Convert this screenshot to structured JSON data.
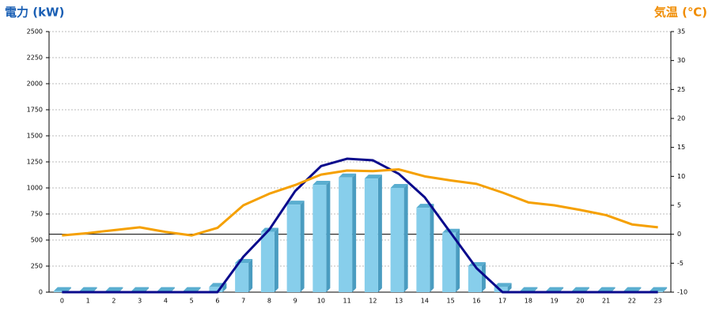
{
  "chart_data": {
    "type": "bar-line",
    "y_label": "電力 (kW)",
    "y2_label": "気温 (℃)",
    "categories": [
      "0",
      "1",
      "2",
      "3",
      "4",
      "5",
      "6",
      "7",
      "8",
      "9",
      "10",
      "11",
      "12",
      "13",
      "14",
      "15",
      "16",
      "17",
      "18",
      "19",
      "20",
      "21",
      "22",
      "23"
    ],
    "series": [
      {
        "type": "bar",
        "color": "#87ceeb",
        "values": [
          10,
          10,
          10,
          10,
          10,
          10,
          50,
          280,
          580,
          840,
          1030,
          1100,
          1090,
          1000,
          810,
          570,
          250,
          50,
          10,
          10,
          10,
          10,
          10,
          10
        ]
      },
      {
        "type": "line",
        "color": "#0a0a8c",
        "values": [
          0,
          0,
          0,
          0,
          0,
          0,
          0,
          340,
          600,
          970,
          1210,
          1280,
          1265,
          1135,
          910,
          570,
          230,
          0,
          0,
          0,
          0,
          0,
          0,
          0
        ]
      },
      {
        "type": "line",
        "color": "#f5a000",
        "axis": "y2",
        "values": [
          -0.2,
          0.2,
          0.7,
          1.2,
          0.4,
          -0.2,
          1.1,
          5,
          7,
          8.5,
          10.3,
          11,
          10.9,
          11.2,
          10,
          9.3,
          8.7,
          7.2,
          5.5,
          5,
          4.2,
          3.3,
          1.7,
          1.2
        ]
      }
    ],
    "ylim": [
      0,
      2500
    ],
    "yticks": [
      0,
      250,
      500,
      750,
      1000,
      1250,
      1500,
      1750,
      2000,
      2250,
      2500
    ],
    "y2lim": [
      -10,
      35
    ],
    "y2ticks": [
      -10,
      -5,
      0,
      5,
      10,
      15,
      20,
      25,
      30,
      35
    ],
    "grid": true
  }
}
